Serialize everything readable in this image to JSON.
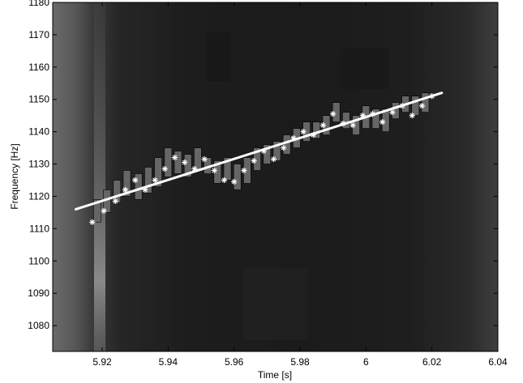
{
  "chart_data": {
    "type": "scatter",
    "title": "",
    "xlabel": "Time [s]",
    "ylabel": "Frequency [Hz]",
    "xlim": [
      5.905,
      6.04
    ],
    "ylim": [
      1072,
      1180
    ],
    "xticks": [
      5.92,
      5.94,
      5.96,
      5.98,
      6.0,
      6.02,
      6.04
    ],
    "xtick_labels": [
      "5.92",
      "5.94",
      "5.96",
      "5.98",
      "6",
      "6.02",
      "6.04"
    ],
    "yticks": [
      1080,
      1090,
      1100,
      1110,
      1120,
      1130,
      1140,
      1150,
      1160,
      1170,
      1180
    ],
    "ytick_labels": [
      "1080",
      "1090",
      "1100",
      "1110",
      "1120",
      "1130",
      "1140",
      "1150",
      "1160",
      "1170",
      "1180"
    ],
    "background": "spectrogram",
    "grid": false,
    "colors": {
      "boxes": "#666666",
      "markers": "#ffffff",
      "fit_line": "#ffffff"
    },
    "fit_line": {
      "x": [
        5.912,
        6.023
      ],
      "y": [
        1116,
        1152
      ]
    },
    "boxes": [
      {
        "x": 5.9185,
        "low": 1112,
        "high": 1119
      },
      {
        "x": 5.9215,
        "low": 1115,
        "high": 1122
      },
      {
        "x": 5.9245,
        "low": 1118,
        "high": 1125
      },
      {
        "x": 5.9275,
        "low": 1120,
        "high": 1128
      },
      {
        "x": 5.931,
        "low": 1119,
        "high": 1127
      },
      {
        "x": 5.934,
        "low": 1121,
        "high": 1129
      },
      {
        "x": 5.937,
        "low": 1123,
        "high": 1132
      },
      {
        "x": 5.94,
        "low": 1126,
        "high": 1135
      },
      {
        "x": 5.943,
        "low": 1127,
        "high": 1134
      },
      {
        "x": 5.946,
        "low": 1126,
        "high": 1133
      },
      {
        "x": 5.949,
        "low": 1128,
        "high": 1135
      },
      {
        "x": 5.952,
        "low": 1127,
        "high": 1132
      },
      {
        "x": 5.955,
        "low": 1124,
        "high": 1131
      },
      {
        "x": 5.958,
        "low": 1125,
        "high": 1132
      },
      {
        "x": 5.961,
        "low": 1122,
        "high": 1130
      },
      {
        "x": 5.964,
        "low": 1124,
        "high": 1132
      },
      {
        "x": 5.967,
        "low": 1128,
        "high": 1135
      },
      {
        "x": 5.97,
        "low": 1130,
        "high": 1136
      },
      {
        "x": 5.973,
        "low": 1131,
        "high": 1137
      },
      {
        "x": 5.976,
        "low": 1133,
        "high": 1139
      },
      {
        "x": 5.979,
        "low": 1135,
        "high": 1141
      },
      {
        "x": 5.982,
        "low": 1137,
        "high": 1143
      },
      {
        "x": 5.985,
        "low": 1138,
        "high": 1143
      },
      {
        "x": 5.988,
        "low": 1139,
        "high": 1145
      },
      {
        "x": 5.991,
        "low": 1143,
        "high": 1149
      },
      {
        "x": 5.994,
        "low": 1141,
        "high": 1146
      },
      {
        "x": 5.997,
        "low": 1139,
        "high": 1145
      },
      {
        "x": 6.0,
        "low": 1141,
        "high": 1148
      },
      {
        "x": 6.003,
        "low": 1141,
        "high": 1147
      },
      {
        "x": 6.006,
        "low": 1140,
        "high": 1147
      },
      {
        "x": 6.009,
        "low": 1144,
        "high": 1149
      },
      {
        "x": 6.012,
        "low": 1146,
        "high": 1151
      },
      {
        "x": 6.015,
        "low": 1145,
        "high": 1151
      },
      {
        "x": 6.018,
        "low": 1146,
        "high": 1152
      }
    ],
    "points": [
      {
        "x": 5.917,
        "y": 1112
      },
      {
        "x": 5.9205,
        "y": 1115.5
      },
      {
        "x": 5.924,
        "y": 1118.5
      },
      {
        "x": 5.927,
        "y": 1122
      },
      {
        "x": 5.93,
        "y": 1125
      },
      {
        "x": 5.933,
        "y": 1122
      },
      {
        "x": 5.936,
        "y": 1125
      },
      {
        "x": 5.939,
        "y": 1128.5
      },
      {
        "x": 5.942,
        "y": 1132
      },
      {
        "x": 5.945,
        "y": 1130.5
      },
      {
        "x": 5.948,
        "y": 1128.5
      },
      {
        "x": 5.951,
        "y": 1131.5
      },
      {
        "x": 5.954,
        "y": 1128
      },
      {
        "x": 5.957,
        "y": 1125
      },
      {
        "x": 5.96,
        "y": 1124.5
      },
      {
        "x": 5.963,
        "y": 1128
      },
      {
        "x": 5.966,
        "y": 1131
      },
      {
        "x": 5.969,
        "y": 1134
      },
      {
        "x": 5.972,
        "y": 1131.5
      },
      {
        "x": 5.975,
        "y": 1135
      },
      {
        "x": 5.978,
        "y": 1138
      },
      {
        "x": 5.981,
        "y": 1140
      },
      {
        "x": 5.984,
        "y": 1139
      },
      {
        "x": 5.987,
        "y": 1142
      },
      {
        "x": 5.99,
        "y": 1145.5
      },
      {
        "x": 5.993,
        "y": 1142.5
      },
      {
        "x": 5.996,
        "y": 1142
      },
      {
        "x": 5.999,
        "y": 1145
      },
      {
        "x": 6.002,
        "y": 1145.5
      },
      {
        "x": 6.005,
        "y": 1143
      },
      {
        "x": 6.008,
        "y": 1146
      },
      {
        "x": 6.011,
        "y": 1148
      },
      {
        "x": 6.014,
        "y": 1145
      },
      {
        "x": 6.017,
        "y": 1148
      },
      {
        "x": 6.02,
        "y": 1151
      }
    ]
  }
}
